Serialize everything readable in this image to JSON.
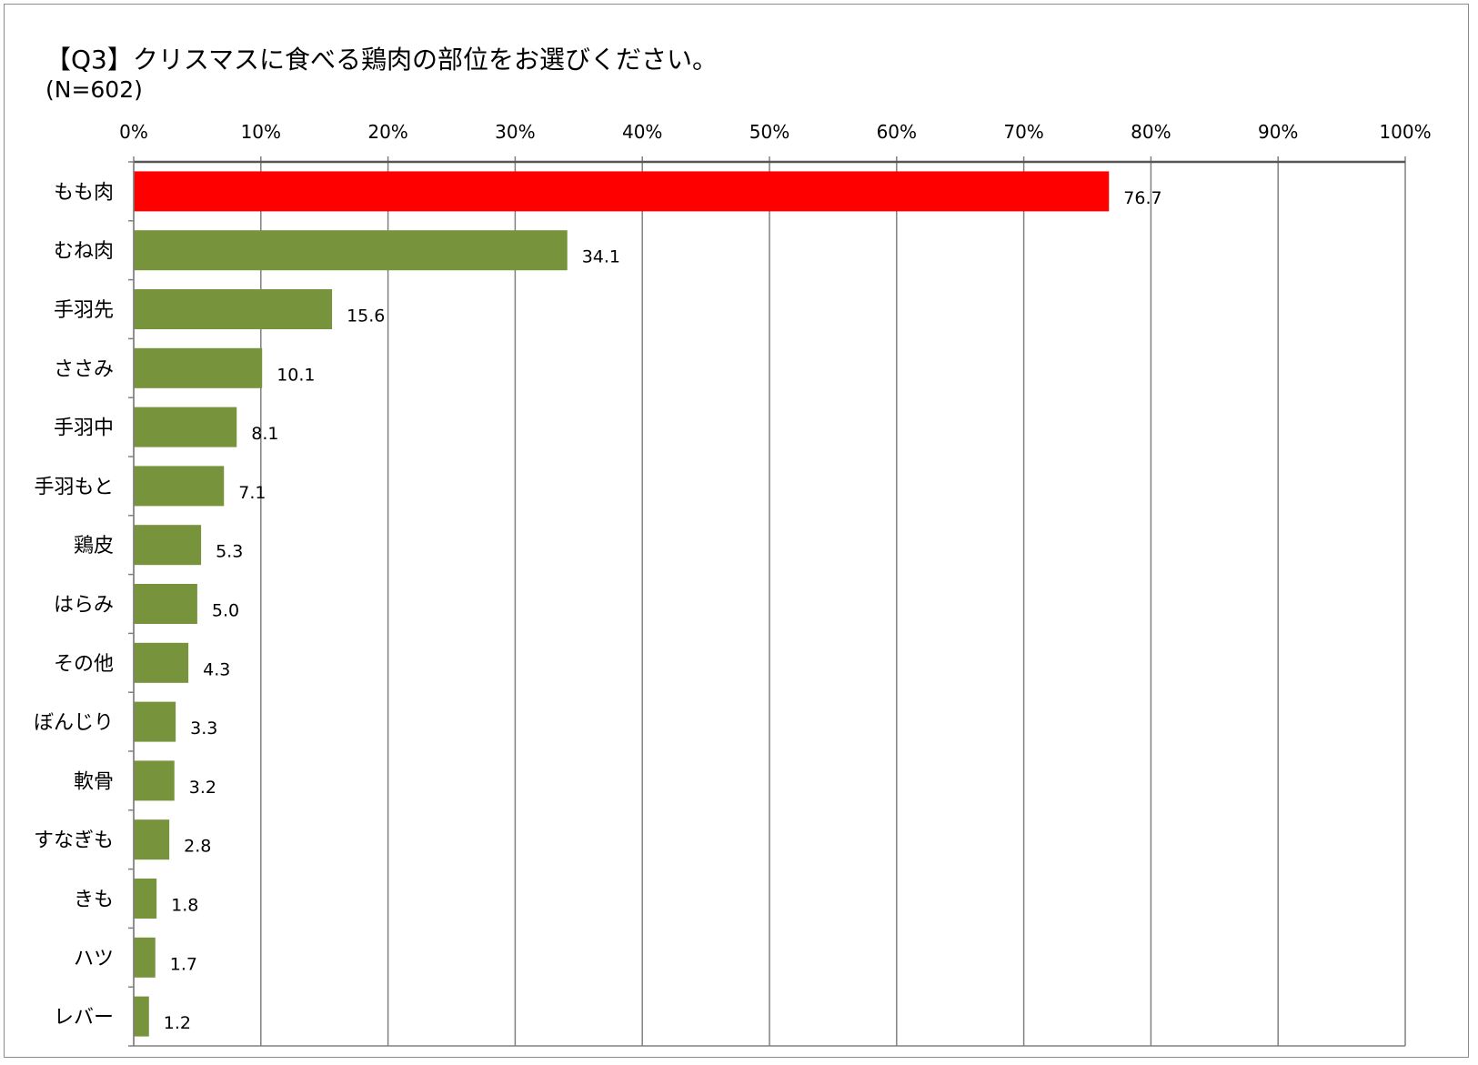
{
  "chart_data": {
    "type": "bar",
    "orientation": "horizontal",
    "title": "【Q3】クリスマスに食べる鶏肉の部位をお選びください。",
    "subtitle": "(N=602)",
    "xlabel": "",
    "ylabel": "",
    "xlim": [
      0,
      100
    ],
    "x_ticks": [
      "0%",
      "10%",
      "20%",
      "30%",
      "40%",
      "50%",
      "60%",
      "70%",
      "80%",
      "90%",
      "100%"
    ],
    "x_tick_values": [
      0,
      10,
      20,
      30,
      40,
      50,
      60,
      70,
      80,
      90,
      100
    ],
    "axis_position": "top",
    "grid": true,
    "legend": "none",
    "categories": [
      "もも肉",
      "むね肉",
      "手羽先",
      "ささみ",
      "手羽中",
      "手羽もと",
      "鶏皮",
      "はらみ",
      "その他",
      "ぼんじり",
      "軟骨",
      "すなぎも",
      "きも",
      "ハツ",
      "レバー"
    ],
    "values": [
      76.7,
      34.1,
      15.6,
      10.1,
      8.1,
      7.1,
      5.3,
      5.0,
      4.3,
      3.3,
      3.2,
      2.8,
      1.8,
      1.7,
      1.2
    ],
    "value_labels": [
      "76.7",
      "34.1",
      "15.6",
      "10.1",
      "8.1",
      "7.1",
      "5.3",
      "5.0",
      "4.3",
      "3.3",
      "3.2",
      "2.8",
      "1.8",
      "1.7",
      "1.2"
    ],
    "colors": {
      "highlight": "#ff0000",
      "default": "#77933c",
      "grid": "#808080",
      "frame": "#8c8c8c"
    },
    "highlight_index": 0
  }
}
